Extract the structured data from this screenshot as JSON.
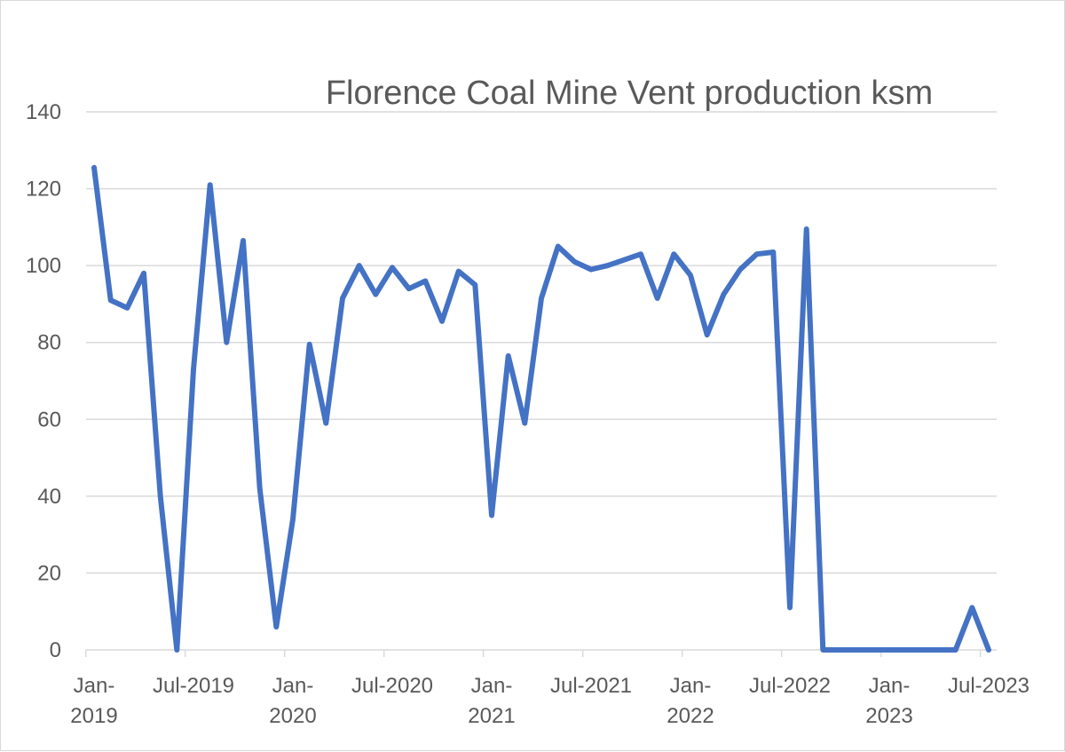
{
  "chart_data": {
    "type": "line",
    "title": "Florence Coal Mine Vent production ksm",
    "xlabel": "",
    "ylabel": "",
    "ylim": [
      0,
      140
    ],
    "yticks": [
      0,
      20,
      40,
      60,
      80,
      100,
      120,
      140
    ],
    "xtick_labels": [
      {
        "month": "2019-01",
        "lines": [
          "Jan-",
          "2019"
        ]
      },
      {
        "month": "2019-07",
        "lines": [
          "Jul-2019"
        ]
      },
      {
        "month": "2020-01",
        "lines": [
          "Jan-",
          "2020"
        ]
      },
      {
        "month": "2020-07",
        "lines": [
          "Jul-2020"
        ]
      },
      {
        "month": "2021-01",
        "lines": [
          "Jan-",
          "2021"
        ]
      },
      {
        "month": "2021-07",
        "lines": [
          "Jul-2021"
        ]
      },
      {
        "month": "2022-01",
        "lines": [
          "Jan-",
          "2022"
        ]
      },
      {
        "month": "2022-07",
        "lines": [
          "Jul-2022"
        ]
      },
      {
        "month": "2023-01",
        "lines": [
          "Jan-",
          "2023"
        ]
      },
      {
        "month": "2023-07",
        "lines": [
          "Jul-2023"
        ]
      }
    ],
    "x": [
      "2019-01",
      "2019-02",
      "2019-03",
      "2019-04",
      "2019-05",
      "2019-06",
      "2019-07",
      "2019-08",
      "2019-09",
      "2019-10",
      "2019-11",
      "2019-12",
      "2020-01",
      "2020-02",
      "2020-03",
      "2020-04",
      "2020-05",
      "2020-06",
      "2020-07",
      "2020-08",
      "2020-09",
      "2020-10",
      "2020-11",
      "2020-12",
      "2021-01",
      "2021-02",
      "2021-03",
      "2021-04",
      "2021-05",
      "2021-06",
      "2021-07",
      "2021-08",
      "2021-09",
      "2021-10",
      "2021-11",
      "2021-12",
      "2022-01",
      "2022-02",
      "2022-03",
      "2022-04",
      "2022-05",
      "2022-06",
      "2022-07",
      "2022-08",
      "2022-09",
      "2022-10",
      "2022-11",
      "2022-12",
      "2023-01",
      "2023-02",
      "2023-03",
      "2023-04",
      "2023-05",
      "2023-06",
      "2023-07"
    ],
    "series": [
      {
        "name": "",
        "color": "#4472c4",
        "values": [
          125.5,
          91,
          89,
          98,
          40,
          0,
          73,
          121,
          80,
          106.5,
          42,
          6,
          34,
          79.5,
          59,
          91.5,
          100,
          92.5,
          99.5,
          94,
          96,
          85.5,
          98.5,
          95,
          35,
          76.5,
          59,
          91.5,
          105,
          101,
          99,
          100,
          101.5,
          103,
          91.5,
          103,
          97.5,
          82,
          92.5,
          99,
          103,
          103.5,
          11,
          109.5,
          0,
          0,
          0,
          0,
          0,
          0,
          0,
          0,
          0,
          11,
          0
        ]
      }
    ],
    "grid": true,
    "legend": "none"
  }
}
